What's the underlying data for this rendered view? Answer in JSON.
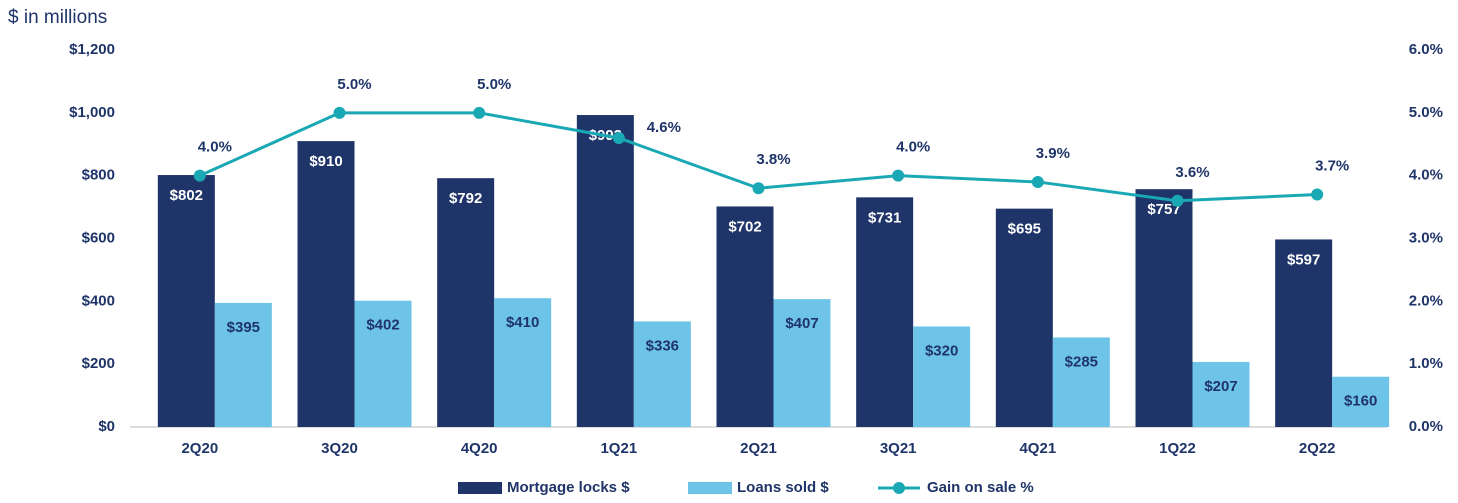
{
  "chart_data": {
    "type": "bar",
    "y_label": "$ in millions",
    "categories": [
      "2Q20",
      "3Q20",
      "4Q20",
      "1Q21",
      "2Q21",
      "3Q21",
      "4Q21",
      "1Q22",
      "2Q22"
    ],
    "series": [
      {
        "name": "Mortgage locks $",
        "type": "bar",
        "color": "#1f3468",
        "values": [
          802,
          910,
          792,
          993,
          702,
          731,
          695,
          757,
          597
        ],
        "value_labels": [
          "$802",
          "$910",
          "$792",
          "$993",
          "$702",
          "$731",
          "$695",
          "$757",
          "$597"
        ]
      },
      {
        "name": "Loans sold $",
        "type": "bar",
        "color": "#6ec3e8",
        "values": [
          395,
          402,
          410,
          336,
          407,
          320,
          285,
          207,
          160
        ],
        "value_labels": [
          "$395",
          "$402",
          "$410",
          "$336",
          "$407",
          "$320",
          "$285",
          "$207",
          "$160"
        ]
      },
      {
        "name": "Gain on sale %",
        "type": "line",
        "axis": "y2",
        "color": "#1aa9b4",
        "values": [
          4.0,
          5.0,
          5.0,
          4.6,
          3.8,
          4.0,
          3.9,
          3.6,
          3.7
        ],
        "value_labels": [
          "4.0%",
          "5.0%",
          "5.0%",
          "4.6%",
          "3.8%",
          "4.0%",
          "3.9%",
          "3.6%",
          "3.7%"
        ]
      }
    ],
    "ylim": [
      0,
      1200
    ],
    "yticks": [
      {
        "value": 0,
        "label": "$0"
      },
      {
        "value": 200,
        "label": "$200"
      },
      {
        "value": 400,
        "label": "$400"
      },
      {
        "value": 600,
        "label": "$600"
      },
      {
        "value": 800,
        "label": "$800"
      },
      {
        "value": 1000,
        "label": "$1,000"
      },
      {
        "value": 1200,
        "label": "$1,200"
      }
    ],
    "y2lim": [
      0,
      6
    ],
    "y2ticks": [
      {
        "value": 0,
        "label": "0.0%"
      },
      {
        "value": 1,
        "label": "1.0%"
      },
      {
        "value": 2,
        "label": "2.0%"
      },
      {
        "value": 3,
        "label": "3.0%"
      },
      {
        "value": 4,
        "label": "4.0%"
      },
      {
        "value": 5,
        "label": "5.0%"
      },
      {
        "value": 6,
        "label": "6.0%"
      }
    ],
    "legend": "bottom"
  }
}
